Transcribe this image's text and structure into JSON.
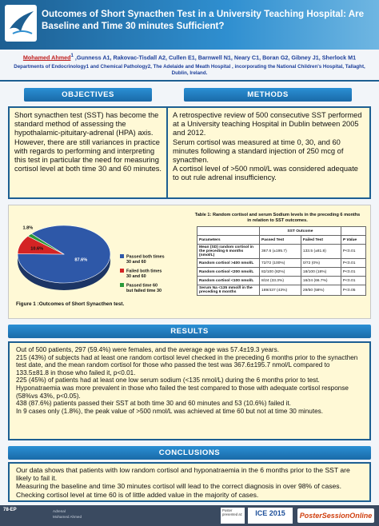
{
  "header": {
    "title": "Outcomes of Short Synacthen Test in a University Teaching Hospital: Are Baseline and Time 30 minutes Sufficient?",
    "authors_first": "Mohamed Ahmed",
    "authors_first_sup": "1",
    "authors_rest": " ,Gunness A1, Rakovac-Tisdall A2, Cullen E1, Barnwell N1, Neary C1, Boran G2, Gibney J1, Sherlock M1",
    "departments": "Departments of Endocrinology1 and Chemical Pathology2, The Adelaide and Meath Hospital , incorporating the National Children's Hospital, Tallaght, Dublin, Ireland."
  },
  "sections": {
    "objectives": "OBJECTIVES",
    "methods": "METHODS",
    "results": "RESULTS",
    "conclusions": "CONCLUSIONS"
  },
  "objectives_text": "Short synacthen test (SST) has become the standard method of assessing the hypothalamic-pituitary-adrenal (HPA) axis. However, there are still variances in practice with regards to performing and interpreting this test in particular the need for measuring cortisol level at both time 30 and 60 minutes.",
  "methods_text": {
    "p1": " A retrospective review of 500 consecutive SST performed at a University teaching Hospital in Dublin between 2005 and 2012.",
    "p2": "Serum cortisol was measured at time 0, 30, and 60 minutes following a standard injection of 250 mcg of synacthen.",
    "p3": " A cortisol level of >500 nmol/L was considered adequate to out rule adrenal insufficiency."
  },
  "chart_data": {
    "type": "pie",
    "caption": "Figure 1 :Outcomes of Short Synacthen test.",
    "slices": [
      {
        "label": "Passed both times 30 and 60",
        "value": 87.6,
        "text": "87.6%",
        "color": "#2e58a8"
      },
      {
        "label": "Failed both times 30 and 60",
        "value": 10.6,
        "text": "10.6%",
        "color": "#d42424"
      },
      {
        "label": "Passed time 60 but failed time 30",
        "value": 1.8,
        "text": "1.8%",
        "color": "#2a9a3a"
      }
    ]
  },
  "table": {
    "title": "Table 1: Random cortisol and serum Sodium levels in the preceding 6 months in relation to SST outcomes.",
    "group_header": "SST Outcome",
    "headers": [
      "Parameters",
      "Passed Test",
      "Failed Test",
      "P Value"
    ],
    "rows": [
      [
        "Mean (SD) random cortisol in the preceding 6 months (nmol/L)",
        "367.6 (±195.7)",
        "133.5 (±81.8)",
        "P<0.01"
      ],
      [
        "Random cortisol >400 nmol/L",
        "72/72 (100%)",
        "0/72 (0%)",
        "P<0.01"
      ],
      [
        "Random cortisol <200 nmol/L",
        "82/100 (82%)",
        "18/100 (18%)",
        "P<0.01"
      ],
      [
        "Random cortisol <100 nmol/L",
        "8/24 (33.3%)",
        "16/24 (66.7%)",
        "P<0.01"
      ],
      [
        "Serum Na <135 mmol/l in the preceding 6 months",
        "189/437 (43%)",
        "29/50 (58%)",
        "P<0.05"
      ]
    ]
  },
  "results_text": [
    "Out of 500 patients, 297 (59.4%) were females, and the average age was 57.4±19.3 years.",
    " 215 (43%) of subjects had at least one random cortisol level checked in the preceding 6 months prior to the synacthen test date, and the mean random cortisol for those who passed the test was 367.6±195.7 nmol/L compared to 133.5±81.8 in those who failed it, p<0.01.",
    "225 (45%) of patients had at least one low serum sodium (<135 nmol/L) during the 6 months prior to test.",
    "Hyponatraemia was more prevalent in those who failed the test compared to those with adequate cortisol response (58%vs 43%, p<0.05).",
    "438 (87.6%) patients passed their SST at both time 30 and 60 minutes and 53 (10.6%) failed it.",
    "In 9 cases only (1.8%), the peak value of >500 nmol/L was achieved at time 60 but not at time 30 minutes."
  ],
  "conclusions_text": [
    "Our data shows that patients with low random cortisol and hyponatraemia in the 6 months prior to the SST are likely to fail it.",
    "Measuring the baseline and time 30 minutes cortisol will lead to the correct diagnosis in over 98% of cases.",
    "Checking cortisol level at time 60 is of little added value in the majority of cases."
  ],
  "footer": {
    "tag": "78-EP",
    "sub1": "Adrenal",
    "sub2": "Mohamed Ahmed",
    "presented": "Poster presented at:",
    "ice": "ICE 2015",
    "ps": "PosterSessionOnline"
  }
}
